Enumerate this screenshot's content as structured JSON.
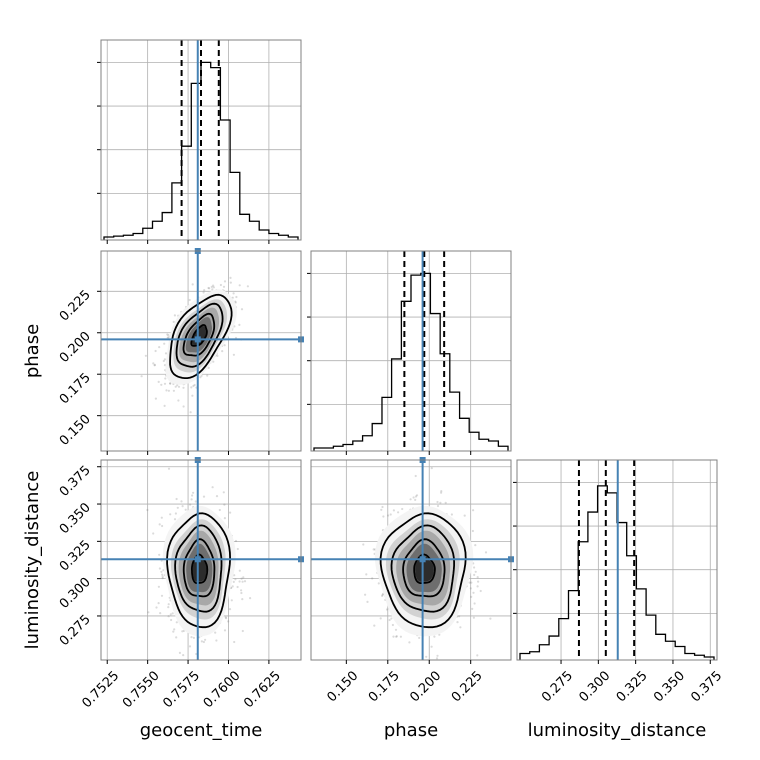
{
  "chart_data": {
    "type": "corner",
    "parameters": [
      "geocent_time",
      "phase",
      "luminosity_distance"
    ],
    "axis_labels": {
      "geocent_time": "geocent_time",
      "phase": "phase",
      "luminosity_distance": "luminosity_distance"
    },
    "ranges": {
      "geocent_time": [
        0.7523,
        0.7643
      ],
      "phase": [
        0.1305,
        0.2475
      ],
      "luminosity_distance": [
        0.2475,
        0.3775
      ]
    },
    "tick_values": {
      "geocent_time": [
        0.7525,
        0.755,
        0.7575,
        0.76,
        0.7625
      ],
      "phase": [
        0.15,
        0.175,
        0.2,
        0.225
      ],
      "luminosity_distance": [
        0.275,
        0.3,
        0.325,
        0.35,
        0.375
      ]
    },
    "tick_labels": {
      "geocent_time": [
        "0.7525",
        "0.7550",
        "0.7575",
        "0.7600",
        "0.7625"
      ],
      "phase": [
        "0.150",
        "0.175",
        "0.200",
        "0.225"
      ],
      "luminosity_distance": [
        "0.275",
        "0.300",
        "0.325",
        "0.350",
        "0.375"
      ]
    },
    "truths": {
      "geocent_time": 0.7581,
      "phase": 0.196,
      "luminosity_distance": 0.313
    },
    "quantiles": {
      "geocent_time": [
        0.7571,
        0.7583,
        0.7594
      ],
      "phase": [
        0.185,
        0.197,
        0.209
      ],
      "luminosity_distance": [
        0.287,
        0.305,
        0.324
      ]
    },
    "histograms": {
      "geocent_time": {
        "bin_edges": [
          0.7523,
          0.7529,
          0.7535,
          0.7541,
          0.7547,
          0.7553,
          0.7559,
          0.7565,
          0.7571,
          0.7577,
          0.7583,
          0.7589,
          0.7595,
          0.7601,
          0.7607,
          0.7613,
          0.7619,
          0.7625,
          0.7631,
          0.7637,
          0.7643
        ],
        "counts": [
          0,
          0.005,
          0.01,
          0.02,
          0.05,
          0.09,
          0.14,
          0.31,
          0.52,
          0.88,
          1.0,
          0.97,
          0.67,
          0.37,
          0.13,
          0.09,
          0.04,
          0.02,
          0.01,
          0
        ]
      },
      "phase": {
        "bin_edges": [
          0.1305,
          0.1363,
          0.1422,
          0.148,
          0.1539,
          0.1598,
          0.1656,
          0.1715,
          0.1773,
          0.1832,
          0.189,
          0.1949,
          0.2007,
          0.2066,
          0.2124,
          0.2183,
          0.2241,
          0.23,
          0.2358,
          0.2417,
          0.2475
        ],
        "counts": [
          0,
          0,
          0.01,
          0.02,
          0.04,
          0.07,
          0.14,
          0.29,
          0.51,
          0.84,
          0.99,
          1.0,
          0.77,
          0.54,
          0.32,
          0.17,
          0.09,
          0.05,
          0.04,
          0.01
        ]
      },
      "luminosity_distance": {
        "bin_edges": [
          0.2475,
          0.254,
          0.2605,
          0.267,
          0.2735,
          0.28,
          0.2865,
          0.293,
          0.2995,
          0.306,
          0.3125,
          0.319,
          0.3255,
          0.332,
          0.3385,
          0.345,
          0.3515,
          0.358,
          0.3645,
          0.371,
          0.3775
        ],
        "counts": [
          0.02,
          0.03,
          0.07,
          0.12,
          0.22,
          0.38,
          0.66,
          0.83,
          0.98,
          0.94,
          0.77,
          0.58,
          0.39,
          0.24,
          0.13,
          0.09,
          0.06,
          0.02,
          0.01,
          0
        ]
      }
    },
    "scatter_2d": [
      {
        "x": "geocent_time",
        "y": "phase",
        "x_mean": 0.7582,
        "y_mean": 0.198,
        "x_std": 0.00095,
        "y_std": 0.0125,
        "correlation": 0.55
      },
      {
        "x": "geocent_time",
        "y": "luminosity_distance",
        "x_mean": 0.7582,
        "y_mean": 0.306,
        "x_std": 0.00095,
        "y_std": 0.019,
        "correlation": 0.0
      },
      {
        "x": "phase",
        "y": "luminosity_distance",
        "x_mean": 0.197,
        "y_mean": 0.306,
        "x_std": 0.0125,
        "y_std": 0.019,
        "correlation": 0.0
      }
    ],
    "colors": {
      "truth": "#4682b4",
      "histogram": "#000000",
      "grid": "#b0b0b0",
      "points": "#7f7f7f"
    },
    "grid": true
  }
}
